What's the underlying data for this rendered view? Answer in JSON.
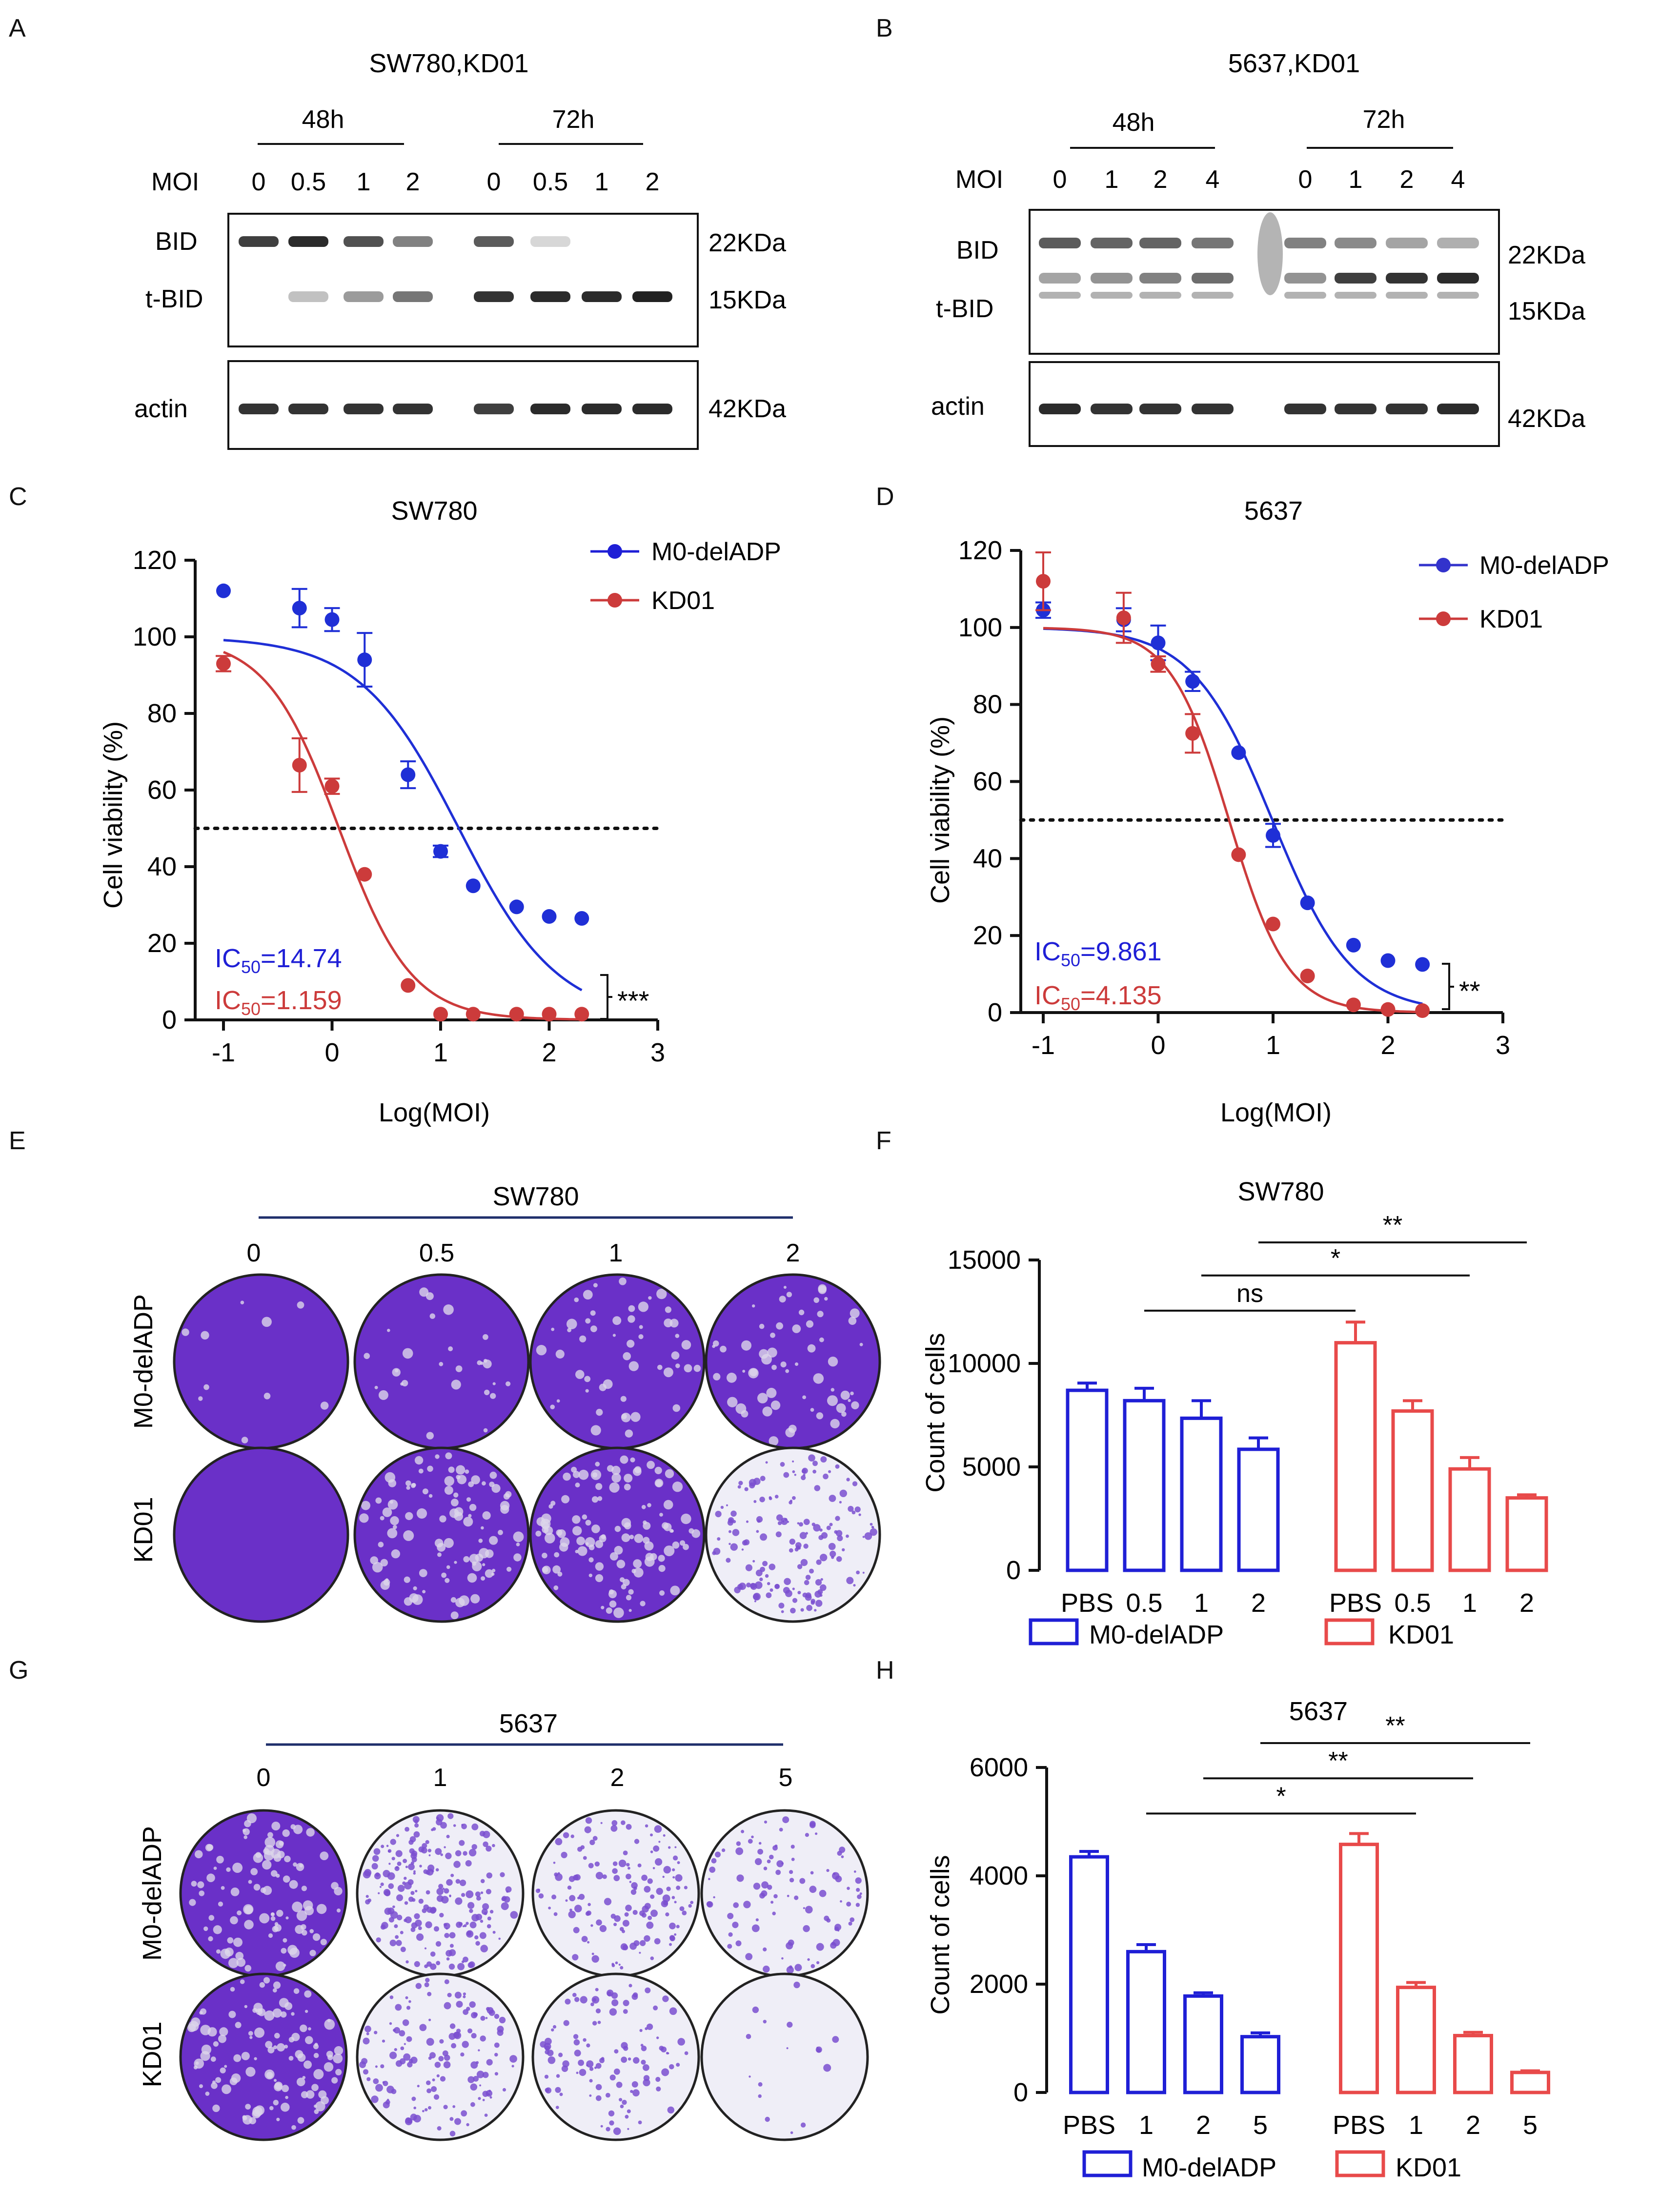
{
  "colors": {
    "blue": "#1f1fd6",
    "red": "#cc3b3b",
    "black": "#111111",
    "crystal_violet": "#6a30c8",
    "gel_band": "#222222"
  },
  "panel_letters": {
    "A": "A",
    "B": "B",
    "C": "C",
    "D": "D",
    "E": "E",
    "F": "F",
    "G": "G",
    "H": "H"
  },
  "blots": {
    "A": {
      "title": "SW780,KD01",
      "groups": [
        "48h",
        "72h"
      ],
      "moi_label": "MOI",
      "moi_values": [
        "0",
        "0.5",
        "1",
        "2",
        "0",
        "0.5",
        "1",
        "2"
      ],
      "rows": [
        "BID",
        "t-BID",
        "actin"
      ],
      "sizes": [
        "22KDa",
        "15KDa",
        "42KDa"
      ],
      "bid_intensity": [
        0.85,
        0.95,
        0.75,
        0.5,
        0.7,
        0.03,
        0,
        0
      ],
      "tbid_intensity": [
        0,
        0.15,
        0.35,
        0.55,
        0.9,
        0.95,
        0.95,
        1.0
      ],
      "actin_intensity": [
        0.9,
        0.9,
        0.9,
        0.9,
        0.85,
        0.95,
        0.95,
        0.95
      ]
    },
    "B": {
      "title": "5637,KD01",
      "groups": [
        "48h",
        "72h"
      ],
      "moi_label": "MOI",
      "moi_values": [
        "0",
        "1",
        "2",
        "4",
        "0",
        "1",
        "2",
        "4"
      ],
      "rows": [
        "BID",
        "t-BID",
        "actin"
      ],
      "sizes": [
        "22KDa",
        "15KDa",
        "42KDa"
      ],
      "bid_intensity": [
        0.7,
        0.65,
        0.65,
        0.55,
        0.5,
        0.45,
        0.3,
        0.25
      ],
      "tbid_intensity": [
        0.3,
        0.4,
        0.5,
        0.6,
        0.4,
        0.85,
        0.9,
        0.95
      ],
      "actin_intensity": [
        0.95,
        0.9,
        0.9,
        0.9,
        0.9,
        0.9,
        0.9,
        0.95
      ]
    }
  },
  "chart_data": [
    {
      "id": "C",
      "type": "scatter",
      "title": "SW780",
      "xlabel": "Log(MOI)",
      "ylabel": "Cell viability (%)",
      "xlim": [
        -1,
        3
      ],
      "ylim": [
        0,
        120
      ],
      "xticks": [
        "-1",
        "0",
        "1",
        "2",
        "3"
      ],
      "yticks": [
        "0",
        "20",
        "40",
        "60",
        "80",
        "100",
        "120"
      ],
      "reference_line_y": 50,
      "significance": "***",
      "series": [
        {
          "name": "M0-delADP",
          "color": "blue",
          "ic50_prefix": "IC",
          "ic50_sub": "50",
          "ic50_value": "=14.74",
          "logIC50": 1.168,
          "hill": 0.95,
          "top": 100,
          "bottom": 0,
          "x": [
            -1,
            -0.3,
            0,
            0.3,
            0.7,
            1,
            1.3,
            1.7,
            2,
            2.3
          ],
          "y": [
            112,
            107.5,
            104.5,
            94,
            64,
            44,
            35,
            29.5,
            27,
            26.5
          ],
          "err": [
            0,
            5,
            3,
            7,
            3.5,
            1.5,
            0,
            0,
            0,
            0
          ]
        },
        {
          "name": "KD01",
          "color": "red",
          "ic50_prefix": "IC",
          "ic50_sub": "50",
          "ic50_value": "=1.159",
          "logIC50": 0.064,
          "hill": 1.3,
          "top": 100,
          "bottom": 0,
          "x": [
            -1,
            -0.3,
            0,
            0.3,
            0.7,
            1,
            1.3,
            1.7,
            2,
            2.3
          ],
          "y": [
            93,
            66.5,
            61,
            38,
            9,
            1.5,
            1.5,
            1.5,
            1.5,
            1.5
          ],
          "err": [
            2,
            7,
            2,
            0,
            0,
            0,
            0,
            0,
            0,
            0
          ]
        }
      ]
    },
    {
      "id": "D",
      "type": "scatter",
      "title": "5637",
      "xlabel": "Log(MOI)",
      "ylabel": "Cell viability (%)",
      "xlim": [
        -1,
        3
      ],
      "ylim": [
        0,
        120
      ],
      "xticks": [
        "-1",
        "0",
        "1",
        "2",
        "3"
      ],
      "yticks": [
        "0",
        "20",
        "40",
        "60",
        "80",
        "100",
        "120"
      ],
      "reference_line_y": 50,
      "significance": "**",
      "series": [
        {
          "name": "M0-delADP",
          "color": "blue",
          "ic50_prefix": "IC",
          "ic50_sub": "50",
          "ic50_value": "=9.861",
          "logIC50": 0.994,
          "hill": 1.25,
          "top": 100,
          "bottom": 0,
          "x": [
            -1,
            -0.3,
            0,
            0.3,
            0.7,
            1,
            1.3,
            1.7,
            2,
            2.3
          ],
          "y": [
            104.5,
            102,
            96,
            86,
            67.5,
            46,
            28.5,
            17.5,
            13.5,
            12.5
          ],
          "err": [
            2,
            3,
            4.5,
            2.5,
            0,
            3,
            0,
            0,
            0,
            0
          ]
        },
        {
          "name": "KD01",
          "color": "red",
          "ic50_prefix": "IC",
          "ic50_sub": "50",
          "ic50_value": "=4.135",
          "logIC50": 0.617,
          "hill": 1.7,
          "top": 100,
          "bottom": 0,
          "x": [
            -1,
            -0.3,
            0,
            0.3,
            0.7,
            1,
            1.3,
            1.7,
            2,
            2.3
          ],
          "y": [
            112,
            102.5,
            90.5,
            72.5,
            41,
            23,
            9.5,
            2,
            0.8,
            0.5
          ],
          "err": [
            7.5,
            6.5,
            2,
            5,
            0,
            0,
            0,
            0,
            0,
            0
          ]
        }
      ]
    },
    {
      "id": "F",
      "type": "bar",
      "title": "SW780",
      "ylabel": "Count of cells",
      "ylim": [
        0,
        15000
      ],
      "yticks": [
        "0",
        "5000",
        "10000",
        "15000"
      ],
      "categories": [
        "PBS",
        "0.5",
        "1",
        "2"
      ],
      "series": [
        {
          "name": "M0-delADP",
          "color": "blue",
          "values": [
            8700,
            8200,
            7350,
            5850
          ],
          "err": [
            350,
            600,
            850,
            550
          ]
        },
        {
          "name": "KD01",
          "color": "red",
          "values": [
            11000,
            7700,
            4900,
            3500
          ],
          "err": [
            1000,
            500,
            550,
            150
          ]
        }
      ],
      "brackets": [
        {
          "label": "ns",
          "from": [
            0,
            1
          ],
          "to": [
            1,
            0
          ],
          "y": 12550
        },
        {
          "label": "*",
          "from": [
            0,
            2
          ],
          "to": [
            1,
            2
          ],
          "y": 14250
        },
        {
          "label": "**",
          "from": [
            0,
            3
          ],
          "to": [
            1,
            3
          ],
          "y": 15850
        }
      ]
    },
    {
      "id": "H",
      "type": "bar",
      "title": "5637",
      "ylabel": "Count of cells",
      "ylim": [
        0,
        6000
      ],
      "yticks": [
        "0",
        "2000",
        "4000",
        "6000"
      ],
      "categories": [
        "PBS",
        "1",
        "2",
        "5"
      ],
      "series": [
        {
          "name": "M0-delADP",
          "color": "blue",
          "values": [
            4350,
            2600,
            1780,
            1030
          ],
          "err": [
            100,
            130,
            60,
            70
          ]
        },
        {
          "name": "KD01",
          "color": "red",
          "values": [
            4580,
            1940,
            1050,
            370
          ],
          "err": [
            200,
            90,
            60,
            30
          ]
        }
      ],
      "brackets": [
        {
          "label": "*",
          "from": [
            0,
            1
          ],
          "to": [
            1,
            1
          ],
          "y": 5150
        },
        {
          "label": "**",
          "from": [
            0,
            2
          ],
          "to": [
            1,
            2
          ],
          "y": 5800
        },
        {
          "label": "**",
          "from": [
            0,
            3
          ],
          "to": [
            1,
            3
          ],
          "y": 6450
        }
      ]
    }
  ],
  "plates": {
    "E": {
      "cell_line": "SW780",
      "columns": [
        "0",
        "0.5",
        "1",
        "2"
      ],
      "rows": [
        "M0-delADP",
        "KD01"
      ],
      "coverage": [
        [
          0.97,
          0.92,
          0.88,
          0.85
        ],
        [
          1.0,
          0.78,
          0.72,
          0.45
        ]
      ]
    },
    "G": {
      "cell_line": "5637",
      "columns": [
        "0",
        "1",
        "2",
        "5"
      ],
      "rows": [
        "M0-delADP",
        "KD01"
      ],
      "coverage": [
        [
          0.72,
          0.55,
          0.42,
          0.28
        ],
        [
          0.72,
          0.38,
          0.3,
          0.04
        ]
      ]
    }
  }
}
